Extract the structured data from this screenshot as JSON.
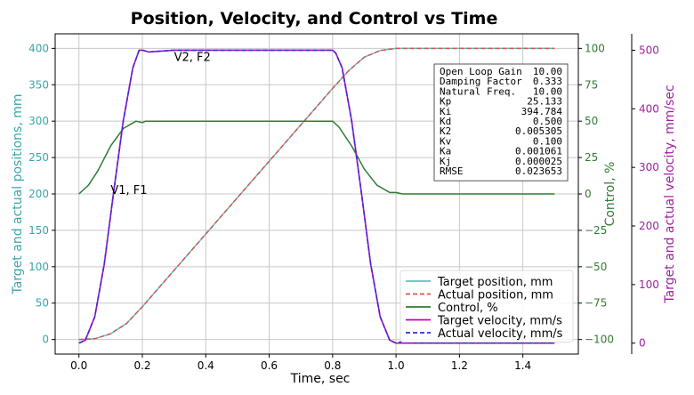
{
  "chart_data": {
    "type": "line",
    "title": "Position, Velocity, and Control vs Time",
    "xlabel": "Time, sec",
    "ylabel_left": "Target and actual positions, mm",
    "ylabel_right1": "Control, %",
    "ylabel_right2": "Target and actual velocity, mm/sec",
    "xlim": [
      -0.075,
      1.575
    ],
    "ylim_left": [
      -20,
      420
    ],
    "ylim_control": [
      -110,
      110
    ],
    "ylim_velocity": [
      -18.67,
      528
    ],
    "x_ticks": [
      "0.0",
      "0.2",
      "0.4",
      "0.6",
      "0.8",
      "1.0",
      "1.2",
      "1.4"
    ],
    "x_tick_values": [
      0,
      0.2,
      0.4,
      0.6,
      0.8,
      1.0,
      1.2,
      1.4
    ],
    "y_left_ticks": [
      "0",
      "50",
      "100",
      "150",
      "200",
      "250",
      "300",
      "350",
      "400"
    ],
    "y_left_tick_values": [
      0,
      50,
      100,
      150,
      200,
      250,
      300,
      350,
      400
    ],
    "y_control_ticks": [
      "−100",
      "−75",
      "−50",
      "−25",
      "0",
      "25",
      "50",
      "75",
      "100"
    ],
    "y_control_tick_values": [
      -100,
      -75,
      -50,
      -25,
      0,
      25,
      50,
      75,
      100
    ],
    "y_velocity_ticks": [
      "0",
      "100",
      "200",
      "300",
      "400",
      "500"
    ],
    "y_velocity_tick_values": [
      0,
      100,
      200,
      300,
      400,
      500
    ],
    "grid": true,
    "legend_position": "lower-right",
    "colors": {
      "target_position": "#5bc0c0",
      "actual_position": "#d9534f",
      "control": "#2e7d32",
      "target_velocity": "#c000c0",
      "actual_velocity": "#3030d0",
      "left_axis": "#3aa6a6",
      "control_axis": "#2e7d32",
      "velocity_axis": "#a020a0"
    },
    "series": [
      {
        "name": "Target position, mm",
        "axis": "left",
        "x": [
          0,
          0.05,
          0.1,
          0.15,
          0.2,
          0.3,
          0.4,
          0.5,
          0.6,
          0.7,
          0.8,
          0.85,
          0.9,
          0.95,
          1.0,
          1.1,
          1.2,
          1.3,
          1.4,
          1.5
        ],
        "y": [
          0,
          1,
          8,
          22,
          45,
          95,
          145,
          195,
          245,
          295,
          345,
          369,
          388,
          397,
          400,
          400,
          400,
          400,
          400,
          400
        ]
      },
      {
        "name": "Actual position, mm",
        "axis": "left",
        "x": [
          0,
          0.05,
          0.1,
          0.15,
          0.2,
          0.3,
          0.4,
          0.5,
          0.6,
          0.7,
          0.8,
          0.85,
          0.9,
          0.95,
          1.0,
          1.1,
          1.2,
          1.3,
          1.4,
          1.5
        ],
        "y": [
          0,
          1,
          8,
          22,
          45,
          95,
          145,
          195,
          245,
          295,
          345,
          369,
          388,
          397,
          400,
          400,
          400,
          400,
          400,
          400
        ]
      },
      {
        "name": "Control, %",
        "axis": "control",
        "x": [
          0,
          0.03,
          0.06,
          0.1,
          0.14,
          0.18,
          0.2,
          0.21,
          0.25,
          0.4,
          0.6,
          0.8,
          0.82,
          0.86,
          0.9,
          0.94,
          0.98,
          1.0,
          1.02,
          1.1,
          1.3,
          1.5
        ],
        "y": [
          0,
          6,
          16,
          33,
          45,
          50,
          49,
          50,
          50,
          50,
          50,
          50,
          46,
          33,
          17,
          6,
          1,
          1,
          0,
          0,
          0,
          0
        ]
      },
      {
        "name": "Target velocity, mm/s",
        "axis": "velocity",
        "x": [
          0,
          0.02,
          0.05,
          0.08,
          0.11,
          0.14,
          0.17,
          0.19,
          0.2,
          0.22,
          0.3,
          0.5,
          0.7,
          0.8,
          0.81,
          0.83,
          0.86,
          0.89,
          0.92,
          0.95,
          0.98,
          1.0,
          1.05,
          1.2,
          1.5
        ],
        "y": [
          0,
          5,
          45,
          135,
          260,
          380,
          470,
          500,
          500,
          497,
          500,
          500,
          500,
          500,
          495,
          470,
          380,
          260,
          135,
          45,
          5,
          0,
          0,
          0,
          0
        ]
      },
      {
        "name": "Actual velocity, mm/s",
        "axis": "velocity",
        "x": [
          0,
          0.02,
          0.05,
          0.08,
          0.11,
          0.14,
          0.17,
          0.19,
          0.2,
          0.22,
          0.3,
          0.5,
          0.7,
          0.8,
          0.81,
          0.83,
          0.86,
          0.89,
          0.92,
          0.95,
          0.98,
          1.0,
          1.02,
          1.05,
          1.2,
          1.5
        ],
        "y": [
          0,
          5,
          45,
          135,
          260,
          380,
          470,
          500,
          500,
          497,
          500,
          500,
          500,
          500,
          495,
          470,
          380,
          260,
          135,
          45,
          5,
          0,
          3,
          0,
          0,
          0
        ]
      }
    ],
    "annotations": [
      {
        "text": "V1, F1",
        "x": 0.1,
        "y_control": 0
      },
      {
        "text": "V2, F2",
        "x": 0.3,
        "y_control": 100
      }
    ],
    "params_box": [
      [
        "Open Loop Gain",
        "10.00"
      ],
      [
        "Damping Factor",
        "0.333"
      ],
      [
        "Natural Freq.",
        "10.00"
      ],
      [
        "Kp",
        "25.133"
      ],
      [
        "Ki",
        "394.784"
      ],
      [
        "Kd",
        "0.500"
      ],
      [
        "K2",
        "0.005305"
      ],
      [
        "Kv",
        "0.100"
      ],
      [
        "Ka",
        "0.001061"
      ],
      [
        "Kj",
        "0.000025"
      ],
      [
        "RMSE",
        "0.023653"
      ]
    ]
  }
}
